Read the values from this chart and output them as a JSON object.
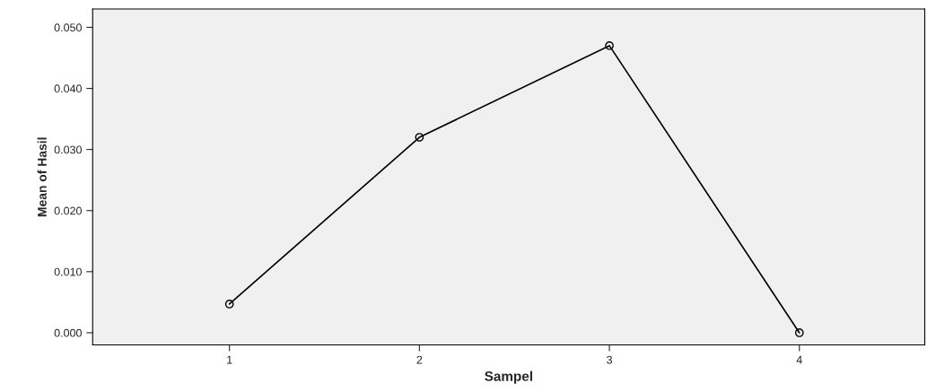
{
  "chart_data": {
    "type": "line",
    "xlabel": "Sampel",
    "ylabel": "Mean of Hasil",
    "categories": [
      "1",
      "2",
      "3",
      "4"
    ],
    "series": [
      {
        "color": "#000000",
        "values": [
          0.0047,
          0.032,
          0.047,
          0.0
        ]
      }
    ],
    "ylim": [
      -0.002,
      0.053
    ],
    "yticks": [
      {
        "value": 0,
        "label": "0.000"
      },
      {
        "value": 0.01,
        "label": "0.010"
      },
      {
        "value": 0.02,
        "label": "0.020"
      },
      {
        "value": 0.03,
        "label": "0.030"
      },
      {
        "value": 0.04,
        "label": "0.040"
      },
      {
        "value": 0.05,
        "label": "0.050"
      }
    ],
    "grid": false,
    "marker": "circle",
    "line_style": "solid"
  }
}
